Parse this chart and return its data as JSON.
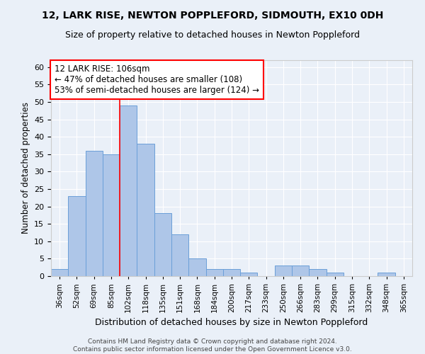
{
  "title": "12, LARK RISE, NEWTON POPPLEFORD, SIDMOUTH, EX10 0DH",
  "subtitle": "Size of property relative to detached houses in Newton Poppleford",
  "xlabel": "Distribution of detached houses by size in Newton Poppleford",
  "ylabel": "Number of detached properties",
  "bar_color": "#aec6e8",
  "bar_edge_color": "#6a9fd8",
  "background_color": "#eaf0f8",
  "categories": [
    "36sqm",
    "52sqm",
    "69sqm",
    "85sqm",
    "102sqm",
    "118sqm",
    "135sqm",
    "151sqm",
    "168sqm",
    "184sqm",
    "200sqm",
    "217sqm",
    "233sqm",
    "250sqm",
    "266sqm",
    "283sqm",
    "299sqm",
    "315sqm",
    "332sqm",
    "348sqm",
    "365sqm"
  ],
  "values": [
    2,
    23,
    36,
    35,
    49,
    38,
    18,
    12,
    5,
    2,
    2,
    1,
    0,
    3,
    3,
    2,
    1,
    0,
    0,
    1,
    0
  ],
  "ylim": [
    0,
    62
  ],
  "yticks": [
    0,
    5,
    10,
    15,
    20,
    25,
    30,
    35,
    40,
    45,
    50,
    55,
    60
  ],
  "red_line_index": 4,
  "annotation_text": "12 LARK RISE: 106sqm\n← 47% of detached houses are smaller (108)\n53% of semi-detached houses are larger (124) →",
  "annotation_box_color": "white",
  "annotation_box_edge": "red",
  "footer_line1": "Contains HM Land Registry data © Crown copyright and database right 2024.",
  "footer_line2": "Contains public sector information licensed under the Open Government Licence v3.0."
}
